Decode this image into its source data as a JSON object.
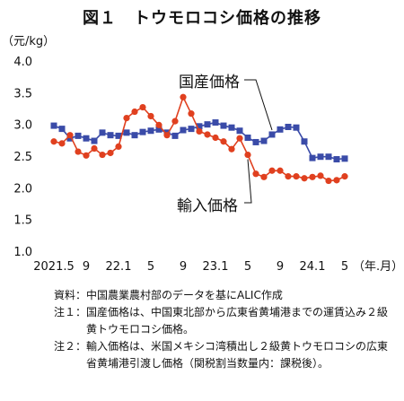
{
  "title": "図１　トウモロコシ価格の推移",
  "chart_data": {
    "type": "line",
    "title": "図１　トウモロコシ価格の推移",
    "ylabel": "（元/kg）",
    "xlabel": "（年.月）",
    "ylim": [
      1.0,
      4.0
    ],
    "y_ticks": [
      "1.0",
      "1.5",
      "2.0",
      "2.5",
      "3.0",
      "3.5",
      "4.0"
    ],
    "x_tick_labels": [
      "2021.5",
      "9",
      "22.1",
      "5",
      "9",
      "23.1",
      "5",
      "9",
      "24.1",
      "5"
    ],
    "grid": false,
    "legend": "direct-labels",
    "x": [
      "2021.5",
      "2021.6",
      "2021.7",
      "2021.8",
      "2021.9",
      "2021.10",
      "2021.11",
      "2021.12",
      "2022.1",
      "2022.2",
      "2022.3",
      "2022.4",
      "2022.5",
      "2022.6",
      "2022.7",
      "2022.8",
      "2022.9",
      "2022.10",
      "2022.11",
      "2022.12",
      "2023.1",
      "2023.2",
      "2023.3",
      "2023.4",
      "2023.5",
      "2023.6",
      "2023.7",
      "2023.8",
      "2023.9",
      "2023.10",
      "2023.11",
      "2023.12",
      "2024.1",
      "2024.2",
      "2024.3",
      "2024.4",
      "2024.5"
    ],
    "series": [
      {
        "name": "国産価格",
        "color": "#3a4ba8",
        "marker": "square",
        "values": [
          2.98,
          2.93,
          2.78,
          2.82,
          2.78,
          2.74,
          2.87,
          2.83,
          2.82,
          2.87,
          2.83,
          2.88,
          2.9,
          2.92,
          2.87,
          2.82,
          2.91,
          2.93,
          2.97,
          3.0,
          3.03,
          2.98,
          2.95,
          2.9,
          2.79,
          2.72,
          2.74,
          2.84,
          2.92,
          2.96,
          2.95,
          2.73,
          2.47,
          2.49,
          2.49,
          2.45,
          2.46
        ]
      },
      {
        "name": "輸入価格",
        "color": "#e0401f",
        "marker": "circle",
        "values": [
          2.73,
          2.7,
          2.83,
          2.57,
          2.51,
          2.62,
          2.52,
          2.55,
          2.65,
          3.1,
          3.2,
          3.27,
          3.13,
          2.99,
          2.83,
          3.05,
          3.43,
          3.17,
          2.89,
          2.84,
          2.79,
          2.73,
          2.61,
          2.78,
          2.52,
          2.22,
          2.17,
          2.27,
          2.27,
          2.18,
          2.18,
          2.15,
          2.17,
          2.19,
          2.11,
          2.12,
          2.18
        ]
      }
    ]
  },
  "notes": [
    {
      "tag": "資料：",
      "text": "中国農業農村部のデータを基にALIC作成"
    },
    {
      "tag": "注１：",
      "text": "国産価格は、中国東北部から広東省黄埔港までの運賃込み２級黄トウモロコシ価格。"
    },
    {
      "tag": "注２：",
      "text": "輸入価格は、米国メキシコ湾積出し２級黄トウモロコシの広東省黄埔港引渡し価格（関税割当数量内：課税後）。"
    }
  ]
}
